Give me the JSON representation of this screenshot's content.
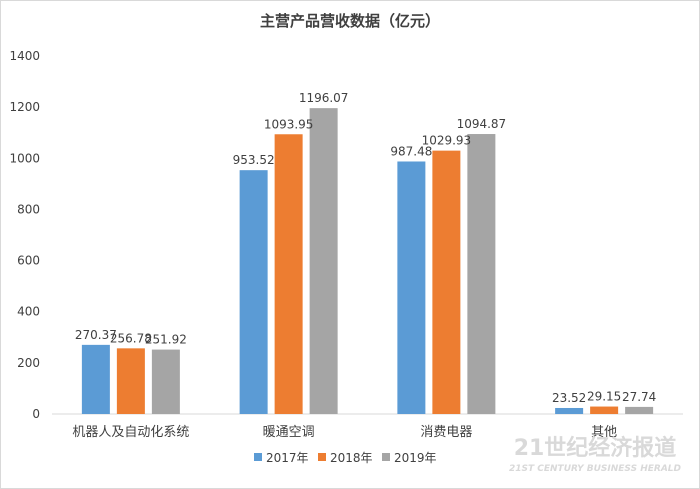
{
  "watermark": {
    "main": "21世纪经济报道",
    "sub": "21ST CENTURY BUSINESS HERALD"
  },
  "chart_data": {
    "type": "bar",
    "title": "主营产品营收数据（亿元）",
    "xlabel": "",
    "ylabel": "",
    "ylim": [
      0,
      1400
    ],
    "yticks": [
      0,
      200,
      400,
      600,
      800,
      1000,
      1200,
      1400
    ],
    "grid": false,
    "legend_position": "bottom",
    "categories": [
      "机器人及自动化系统",
      "暖通空调",
      "消费电器",
      "其他"
    ],
    "series": [
      {
        "name": "2017年",
        "color": "#5b9bd5",
        "values": [
          270.37,
          953.52,
          987.48,
          23.52
        ]
      },
      {
        "name": "2018年",
        "color": "#ed7d31",
        "values": [
          256.78,
          1093.95,
          1029.93,
          29.15
        ]
      },
      {
        "name": "2019年",
        "color": "#a5a5a5",
        "values": [
          251.92,
          1196.07,
          1094.87,
          27.74
        ]
      }
    ]
  }
}
